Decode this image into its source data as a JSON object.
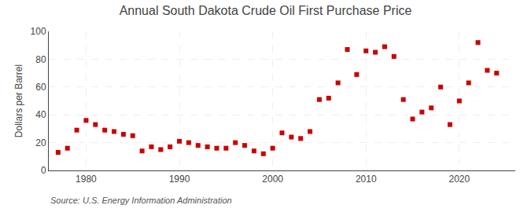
{
  "chart_data": {
    "type": "scatter",
    "title": "Annual South Dakota Crude Oil First Purchase Price",
    "y_label": "Dollars per Barrel",
    "annotations": [
      "Source: U.S. Energy Information Administration"
    ],
    "x": [
      1977,
      1978,
      1979,
      1980,
      1981,
      1982,
      1983,
      1984,
      1985,
      1986,
      1987,
      1988,
      1989,
      1990,
      1991,
      1992,
      1993,
      1994,
      1995,
      1996,
      1997,
      1998,
      1999,
      2000,
      2001,
      2002,
      2003,
      2004,
      2005,
      2006,
      2007,
      2008,
      2009,
      2010,
      2011,
      2012,
      2013,
      2014,
      2015,
      2016,
      2017,
      2018,
      2019,
      2020,
      2021,
      2022,
      2023,
      2024
    ],
    "values": [
      13,
      16,
      29,
      36,
      33,
      29,
      28,
      26,
      25,
      14,
      17,
      15,
      17,
      21,
      20,
      18,
      17,
      16,
      16,
      20,
      18,
      14,
      12,
      16,
      27,
      24,
      23,
      28,
      51,
      52,
      63,
      87,
      69,
      86,
      85,
      89,
      82,
      51,
      37,
      42,
      45,
      60,
      33,
      50,
      63,
      92,
      72,
      70
    ],
    "color": "#cc0000",
    "marker": "square",
    "xlim": [
      1976,
      2026
    ],
    "xticks": [
      1980,
      1990,
      2000,
      2010,
      2020
    ],
    "ylim": [
      0,
      100
    ],
    "yticks": [
      0,
      20,
      40,
      60,
      80,
      100
    ],
    "grid": true
  }
}
